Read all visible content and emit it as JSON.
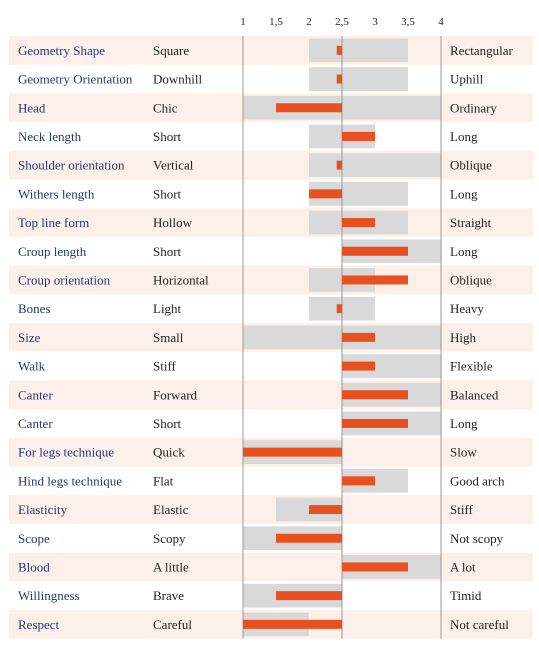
{
  "colors": {
    "row_alt": "#fdf0ea",
    "range": "#d9d9d9",
    "deviation": "#e8501f",
    "trait_text": "#1f3a73",
    "axis": "#999999"
  },
  "chart_data": {
    "type": "bar",
    "subtype": "deviation-profile",
    "title": "",
    "xlabel": "",
    "ylabel": "",
    "xlim": [
      1,
      4
    ],
    "reference": 2.5,
    "ticks": [
      {
        "value": 1,
        "label": "1"
      },
      {
        "value": 1.5,
        "label": "1,5"
      },
      {
        "value": 2,
        "label": "2"
      },
      {
        "value": 2.5,
        "label": "2,5"
      },
      {
        "value": 3,
        "label": "3"
      },
      {
        "value": 3.5,
        "label": "3,5"
      },
      {
        "value": 4,
        "label": "4"
      }
    ],
    "rows": [
      {
        "trait": "Geometry Shape",
        "low": "Square",
        "high": "Rectangular",
        "range": [
          2,
          3.5
        ],
        "value": 2.42
      },
      {
        "trait": "Geometry Orientation",
        "low": "Downhill",
        "high": "Uphill",
        "range": [
          2,
          3.5
        ],
        "value": 2.42
      },
      {
        "trait": "Head",
        "low": "Chic",
        "high": "Ordinary",
        "range": [
          1,
          4
        ],
        "value": 1.5
      },
      {
        "trait": "Neck length",
        "low": "Short",
        "high": "Long",
        "range": [
          2,
          3
        ],
        "value": 3
      },
      {
        "trait": "Shoulder orientation",
        "low": "Vertical",
        "high": "Oblique",
        "range": [
          2,
          4
        ],
        "value": 2.42
      },
      {
        "trait": "Withers length",
        "low": "Short",
        "high": "Long",
        "range": [
          2,
          3.5
        ],
        "value": 2
      },
      {
        "trait": "Top line form",
        "low": "Hollow",
        "high": "Straight",
        "range": [
          2,
          3.5
        ],
        "value": 3
      },
      {
        "trait": "Croup length",
        "low": "Short",
        "high": "Long",
        "range": [
          2.5,
          4
        ],
        "value": 3.5
      },
      {
        "trait": "Croup orientation",
        "low": "Horizontal",
        "high": "Oblique",
        "range": [
          2,
          3
        ],
        "value": 3.5
      },
      {
        "trait": "Bones",
        "low": "Light",
        "high": "Heavy",
        "range": [
          2,
          3
        ],
        "value": 2.42
      },
      {
        "trait": "Size",
        "low": "Small",
        "high": "High",
        "range": [
          1,
          4
        ],
        "value": 3
      },
      {
        "trait": "Walk",
        "low": "Stiff",
        "high": "Flexible",
        "range": [
          2.5,
          4
        ],
        "value": 3
      },
      {
        "trait": "Canter",
        "low": "Forward",
        "high": "Balanced",
        "range": [
          2.5,
          4
        ],
        "value": 3.5
      },
      {
        "trait": "Canter",
        "low": "Short",
        "high": "Long",
        "range": [
          2.5,
          4
        ],
        "value": 3.5
      },
      {
        "trait": "For legs technique",
        "low": "Quick",
        "high": "Slow",
        "range": [
          1,
          2.5
        ],
        "value": 1
      },
      {
        "trait": "Hind legs technique",
        "low": "Flat",
        "high": "Good arch",
        "range": [
          2.5,
          3.5
        ],
        "value": 3
      },
      {
        "trait": "Elasticity",
        "low": "Elastic",
        "high": "Stiff",
        "range": [
          1.5,
          2.5
        ],
        "value": 2
      },
      {
        "trait": "Scope",
        "low": "Scopy",
        "high": "Not scopy",
        "range": [
          1,
          2.5
        ],
        "value": 1.5
      },
      {
        "trait": "Blood",
        "low": "A little",
        "high": "A lot",
        "range": [
          2.5,
          4
        ],
        "value": 3.5
      },
      {
        "trait": "Willingness",
        "low": "Brave",
        "high": "Timid",
        "range": [
          1,
          2.5
        ],
        "value": 1.5
      },
      {
        "trait": "Respect",
        "low": "Careful",
        "high": "Not careful",
        "range": [
          1,
          2
        ],
        "value": 1
      }
    ]
  }
}
